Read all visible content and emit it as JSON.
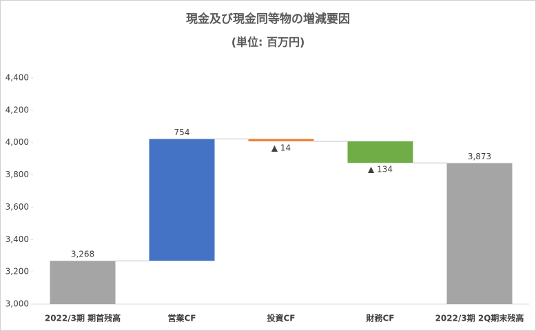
{
  "chart_data": {
    "type": "waterfall",
    "title": "現金及び現金同等物の増減要因",
    "subtitle": "(単位: 百万円)",
    "categories": [
      "2022/3期 期首残高",
      "営業CF",
      "投資CF",
      "財務CF",
      "2022/3期 2Q期末残高"
    ],
    "values": [
      3268,
      754,
      -14,
      -134,
      3873
    ],
    "value_labels": [
      "3,268",
      "754",
      "▲ 14",
      "▲ 134",
      "3,873"
    ],
    "totals": [
      true,
      false,
      false,
      false,
      true
    ],
    "colors": [
      "#a5a5a5",
      "#4472c4",
      "#ed7d31",
      "#70ad47",
      "#a5a5a5"
    ],
    "ylim": [
      3000,
      4400
    ],
    "yticks": [
      {
        "value": 3000,
        "label": "3,000"
      },
      {
        "value": 3200,
        "label": "3,200"
      },
      {
        "value": 3400,
        "label": "3,400"
      },
      {
        "value": 3600,
        "label": "3,600"
      },
      {
        "value": 3800,
        "label": "3,800"
      },
      {
        "value": 4000,
        "label": "4,000"
      },
      {
        "value": 4200,
        "label": "4,200"
      },
      {
        "value": 4400,
        "label": "4,400"
      }
    ],
    "grid": false
  }
}
